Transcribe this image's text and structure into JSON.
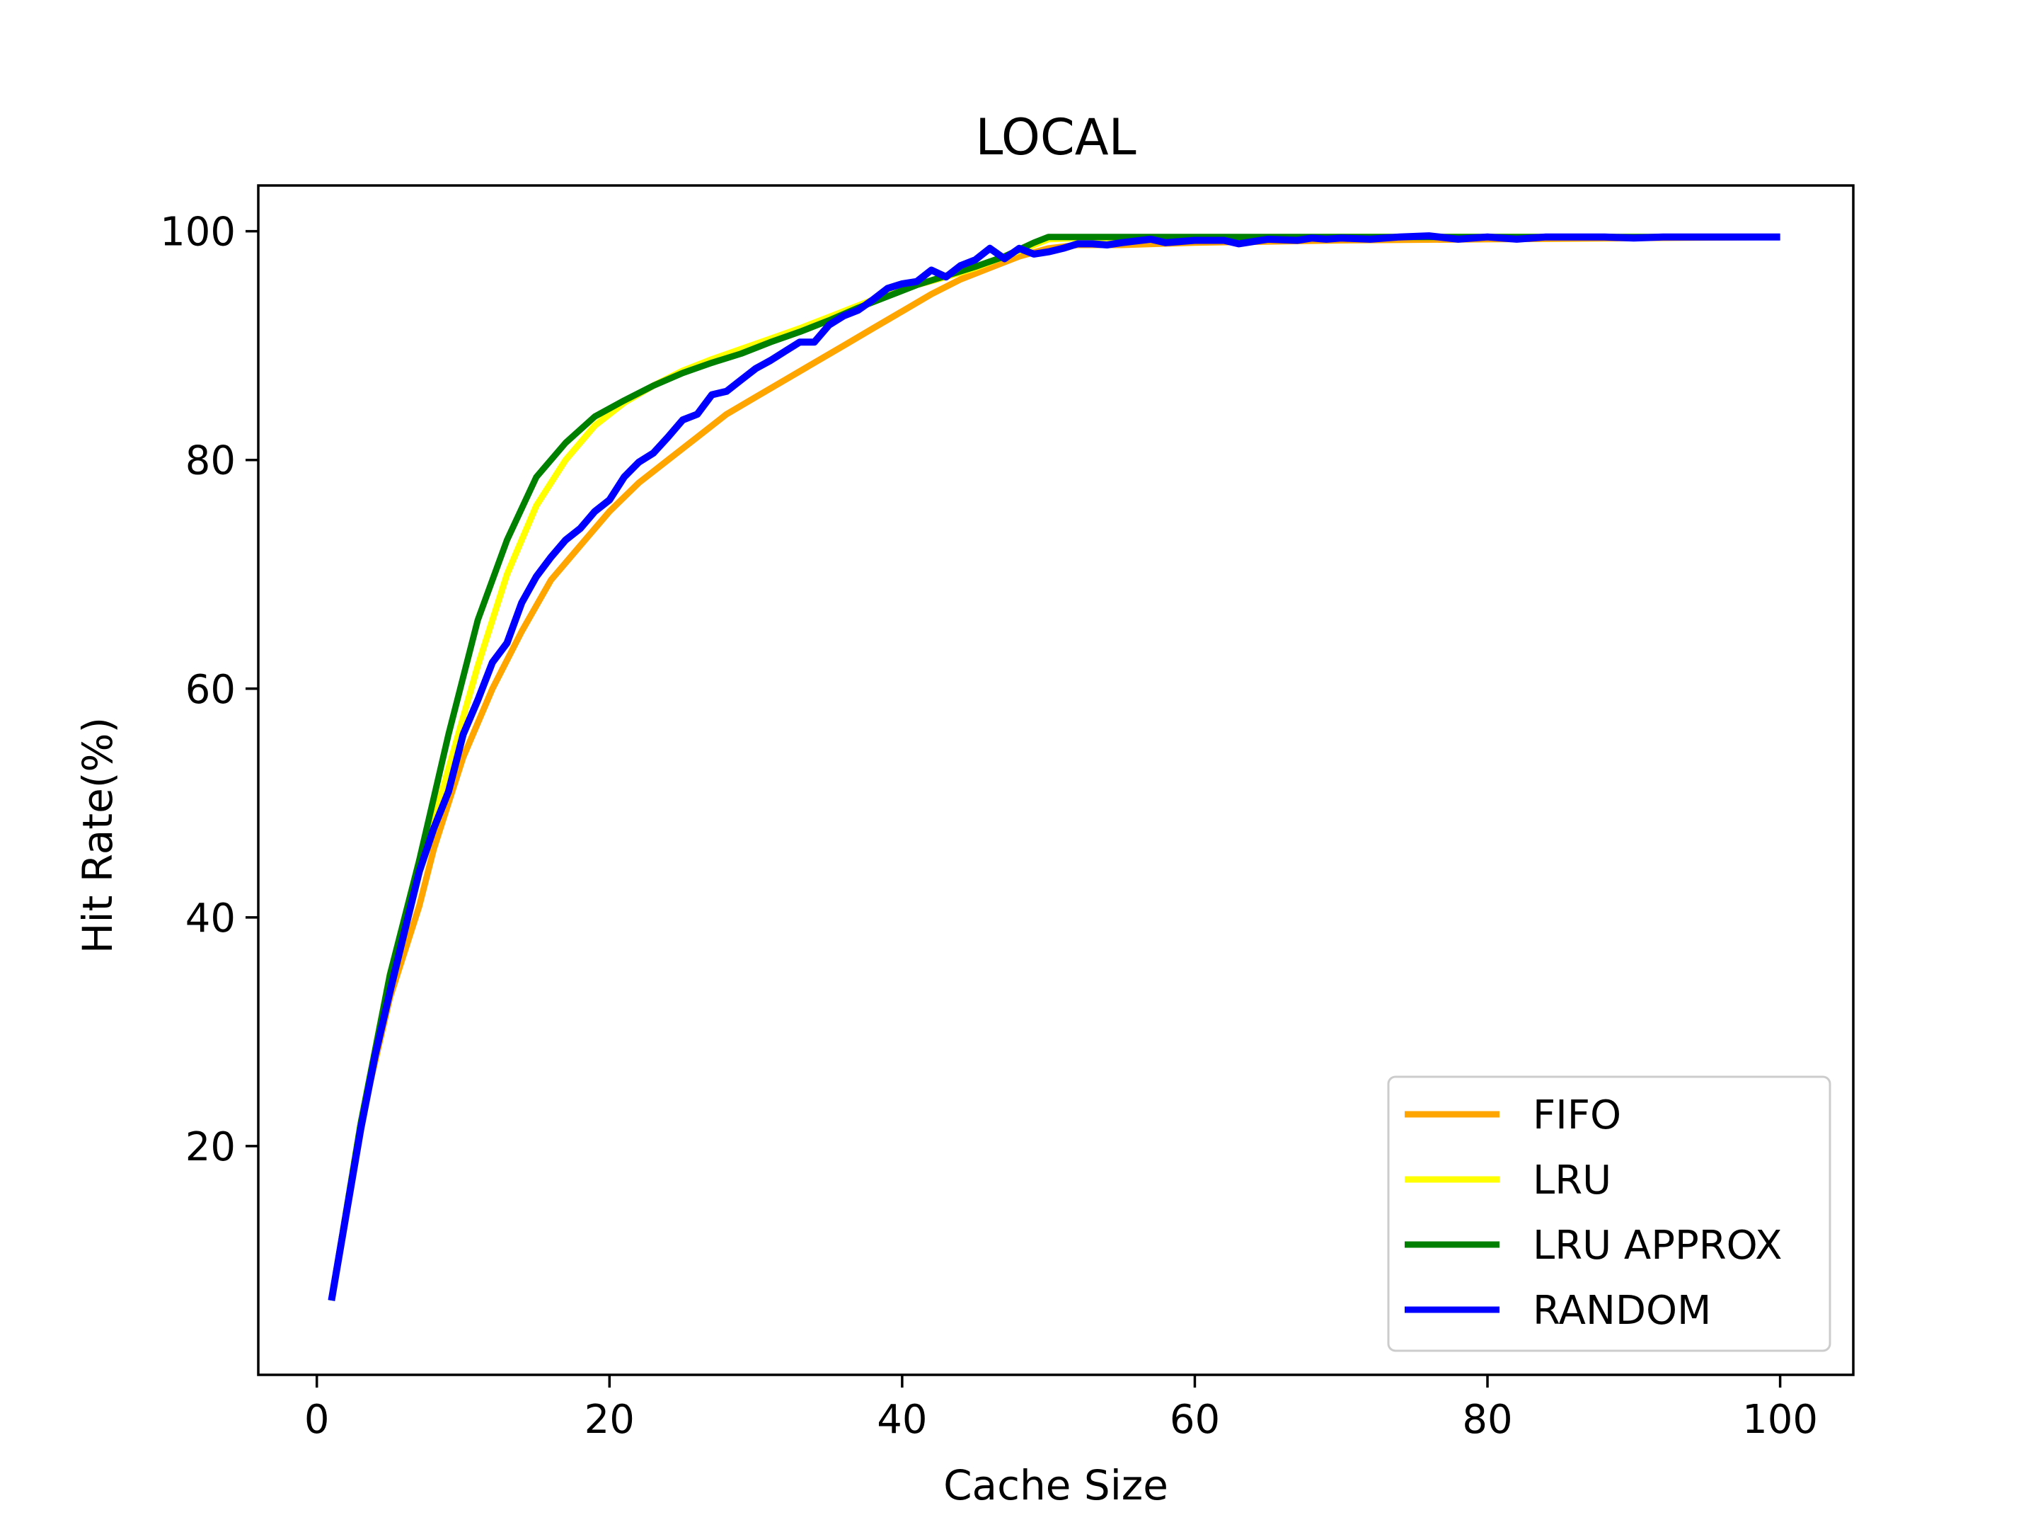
{
  "chart_data": {
    "type": "line",
    "title": "LOCAL",
    "xlabel": "Cache Size",
    "ylabel": "Hit Rate(%)",
    "xlim": [
      -4,
      105
    ],
    "ylim": [
      0,
      104
    ],
    "xticks": [
      0,
      20,
      40,
      60,
      80,
      100
    ],
    "yticks": [
      20,
      40,
      60,
      80,
      100
    ],
    "xtick_labels": [
      "0",
      "20",
      "40",
      "60",
      "80",
      "100"
    ],
    "ytick_labels": [
      "20",
      "40",
      "60",
      "80",
      "100"
    ],
    "legend_position": "lower-right",
    "grid": false,
    "series": [
      {
        "name": "FIFO",
        "color": "#FFA500",
        "points": [
          [
            1,
            6.5
          ],
          [
            3,
            22
          ],
          [
            5,
            33
          ],
          [
            7,
            41
          ],
          [
            8,
            46
          ],
          [
            10,
            54
          ],
          [
            12,
            60
          ],
          [
            14,
            65
          ],
          [
            16,
            69.5
          ],
          [
            18,
            72.5
          ],
          [
            20,
            75.5
          ],
          [
            22,
            78
          ],
          [
            24,
            80
          ],
          [
            26,
            82
          ],
          [
            28,
            84
          ],
          [
            30,
            85.5
          ],
          [
            32,
            87
          ],
          [
            34,
            88.5
          ],
          [
            36,
            90
          ],
          [
            38,
            91.5
          ],
          [
            40,
            93
          ],
          [
            42,
            94.5
          ],
          [
            44,
            95.8
          ],
          [
            46,
            96.8
          ],
          [
            48,
            97.8
          ],
          [
            50,
            98.5
          ],
          [
            52,
            98.8
          ],
          [
            55,
            98.8
          ],
          [
            60,
            99
          ],
          [
            70,
            99.2
          ],
          [
            80,
            99.3
          ],
          [
            90,
            99.4
          ],
          [
            100,
            99.5
          ]
        ]
      },
      {
        "name": "LRU",
        "color": "#FFFF00",
        "points": [
          [
            1,
            6.5
          ],
          [
            3,
            22
          ],
          [
            5,
            35
          ],
          [
            7,
            44
          ],
          [
            9,
            53
          ],
          [
            11,
            62
          ],
          [
            13,
            70
          ],
          [
            15,
            76
          ],
          [
            17,
            80
          ],
          [
            19,
            83
          ],
          [
            21,
            85
          ],
          [
            23,
            86.5
          ],
          [
            25,
            87.8
          ],
          [
            27,
            88.8
          ],
          [
            29,
            89.7
          ],
          [
            31,
            90.6
          ],
          [
            33,
            91.5
          ],
          [
            35,
            92.5
          ],
          [
            37,
            93.5
          ],
          [
            39,
            94.5
          ],
          [
            41,
            95.3
          ],
          [
            43,
            96
          ],
          [
            45,
            96.8
          ],
          [
            47,
            97.8
          ],
          [
            49,
            98.8
          ],
          [
            50,
            99.3
          ],
          [
            52,
            99.4
          ],
          [
            60,
            99.4
          ],
          [
            70,
            99.5
          ],
          [
            80,
            99.5
          ],
          [
            90,
            99.5
          ],
          [
            100,
            99.5
          ]
        ]
      },
      {
        "name": "LRU APPROX",
        "color": "#008000",
        "points": [
          [
            1,
            6.5
          ],
          [
            3,
            22
          ],
          [
            5,
            35
          ],
          [
            7,
            45
          ],
          [
            9,
            56
          ],
          [
            11,
            66
          ],
          [
            13,
            73
          ],
          [
            15,
            78.5
          ],
          [
            17,
            81.5
          ],
          [
            19,
            83.8
          ],
          [
            21,
            85.2
          ],
          [
            23,
            86.5
          ],
          [
            25,
            87.6
          ],
          [
            27,
            88.5
          ],
          [
            29,
            89.3
          ],
          [
            31,
            90.3
          ],
          [
            33,
            91.2
          ],
          [
            35,
            92.2
          ],
          [
            37,
            93.3
          ],
          [
            39,
            94.3
          ],
          [
            41,
            95.3
          ],
          [
            43,
            96.1
          ],
          [
            45,
            96.9
          ],
          [
            47,
            97.8
          ],
          [
            49,
            99
          ],
          [
            50,
            99.5
          ],
          [
            55,
            99.5
          ],
          [
            60,
            99.5
          ],
          [
            70,
            99.5
          ],
          [
            80,
            99.5
          ],
          [
            90,
            99.5
          ],
          [
            100,
            99.5
          ]
        ]
      },
      {
        "name": "RANDOM",
        "color": "#0000FF",
        "points": [
          [
            1,
            6.5
          ],
          [
            2,
            14
          ],
          [
            3,
            21.5
          ],
          [
            4,
            28
          ],
          [
            5,
            33.5
          ],
          [
            6,
            38.8
          ],
          [
            7,
            44
          ],
          [
            8,
            47.8
          ],
          [
            9,
            51
          ],
          [
            10,
            56
          ],
          [
            11,
            59
          ],
          [
            12,
            62.3
          ],
          [
            13,
            64
          ],
          [
            14,
            67.5
          ],
          [
            15,
            69.8
          ],
          [
            16,
            71.5
          ],
          [
            17,
            73
          ],
          [
            18,
            74
          ],
          [
            19,
            75.5
          ],
          [
            20,
            76.5
          ],
          [
            21,
            78.5
          ],
          [
            22,
            79.8
          ],
          [
            23,
            80.6
          ],
          [
            24,
            82
          ],
          [
            25,
            83.5
          ],
          [
            26,
            84
          ],
          [
            27,
            85.7
          ],
          [
            28,
            86
          ],
          [
            29,
            87
          ],
          [
            30,
            88
          ],
          [
            31,
            88.7
          ],
          [
            32,
            89.5
          ],
          [
            33,
            90.3
          ],
          [
            34,
            90.3
          ],
          [
            35,
            91.8
          ],
          [
            36,
            92.6
          ],
          [
            37,
            93.1
          ],
          [
            38,
            94
          ],
          [
            39,
            95
          ],
          [
            40,
            95.4
          ],
          [
            41,
            95.6
          ],
          [
            42,
            96.6
          ],
          [
            43,
            96
          ],
          [
            44,
            97
          ],
          [
            45,
            97.5
          ],
          [
            46,
            98.5
          ],
          [
            47,
            97.6
          ],
          [
            48,
            98.5
          ],
          [
            49,
            98
          ],
          [
            50,
            98.2
          ],
          [
            51,
            98.5
          ],
          [
            52,
            98.9
          ],
          [
            53,
            98.9
          ],
          [
            54,
            98.8
          ],
          [
            55,
            99
          ],
          [
            57,
            99.3
          ],
          [
            58,
            99
          ],
          [
            60,
            99.2
          ],
          [
            62,
            99.2
          ],
          [
            63,
            98.9
          ],
          [
            65,
            99.3
          ],
          [
            67,
            99.2
          ],
          [
            68,
            99.4
          ],
          [
            69,
            99.3
          ],
          [
            70,
            99.4
          ],
          [
            72,
            99.3
          ],
          [
            74,
            99.5
          ],
          [
            76,
            99.6
          ],
          [
            78,
            99.3
          ],
          [
            80,
            99.5
          ],
          [
            82,
            99.3
          ],
          [
            84,
            99.5
          ],
          [
            86,
            99.5
          ],
          [
            88,
            99.5
          ],
          [
            90,
            99.4
          ],
          [
            92,
            99.5
          ],
          [
            94,
            99.5
          ],
          [
            96,
            99.5
          ],
          [
            98,
            99.5
          ],
          [
            100,
            99.5
          ]
        ]
      }
    ]
  }
}
